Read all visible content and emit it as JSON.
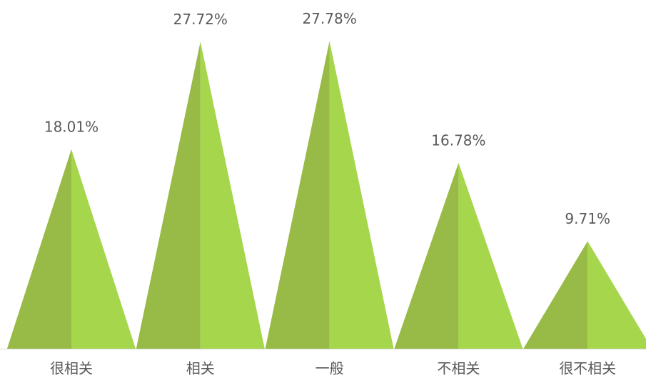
{
  "chart_data": {
    "type": "pyramid",
    "categories": [
      "很相关",
      "相关",
      "一般",
      "不相关",
      "很不相关"
    ],
    "values": [
      18.01,
      27.72,
      27.78,
      16.78,
      9.71
    ],
    "value_labels": [
      "18.01%",
      "27.72%",
      "27.78%",
      "16.78%",
      "9.71%"
    ],
    "colors": [
      "#98ba47",
      "#a6d64b"
    ]
  }
}
